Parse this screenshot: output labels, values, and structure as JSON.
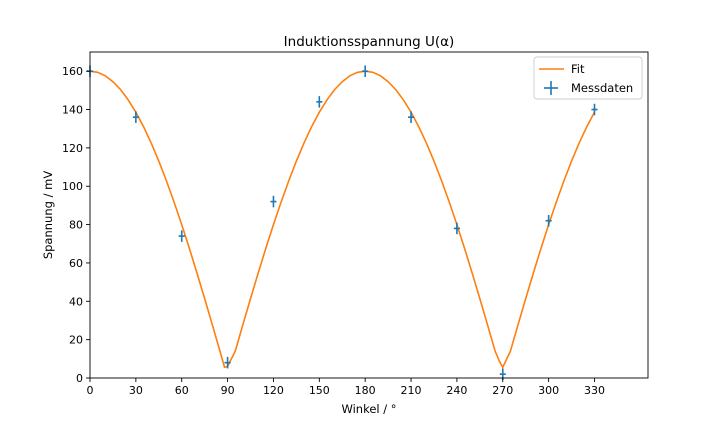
{
  "chart_data": {
    "type": "scatter",
    "title": "Induktionsspannung U(α)",
    "xlabel": "Winkel / °",
    "ylabel": "Spannung  / mV",
    "xlim": [
      0,
      365
    ],
    "ylim": [
      0,
      170
    ],
    "xticks": [
      0,
      30,
      60,
      90,
      120,
      150,
      180,
      210,
      240,
      270,
      300,
      330
    ],
    "yticks": [
      0,
      20,
      40,
      60,
      80,
      100,
      120,
      140,
      160
    ],
    "legend_position": "top-right",
    "colors": {
      "fit": "#ff7f0e",
      "data": "#1f77b4"
    },
    "series": [
      {
        "name": "Fit",
        "kind": "line",
        "x": [
          0,
          5,
          10,
          15,
          20,
          25,
          30,
          35,
          40,
          45,
          50,
          55,
          60,
          65,
          70,
          75,
          80,
          85,
          88,
          90,
          95,
          100,
          105,
          110,
          115,
          120,
          125,
          130,
          135,
          140,
          145,
          150,
          155,
          160,
          165,
          170,
          175,
          180,
          185,
          190,
          195,
          200,
          205,
          210,
          215,
          220,
          225,
          230,
          235,
          240,
          245,
          250,
          255,
          260,
          265,
          268,
          270,
          275,
          280,
          285,
          290,
          295,
          300,
          305,
          310,
          315,
          320,
          325,
          330
        ],
        "y": [
          160,
          159.4,
          157.6,
          154.5,
          150.4,
          145,
          138.6,
          131.1,
          122.6,
          113.1,
          102.8,
          91.7,
          80,
          67.6,
          54.7,
          41.4,
          27.8,
          14,
          5.6,
          6,
          14,
          27.8,
          41.4,
          54.7,
          67.6,
          80,
          91.7,
          102.8,
          113.1,
          122.6,
          131.1,
          138.6,
          145,
          150.4,
          154.5,
          157.6,
          159.4,
          160,
          159.4,
          157.6,
          154.5,
          150.4,
          145,
          138.6,
          131.1,
          122.6,
          113.1,
          102.8,
          91.7,
          80,
          67.6,
          54.7,
          41.4,
          27.8,
          14,
          8.4,
          5.6,
          14,
          27.8,
          41.4,
          54.7,
          67.6,
          80,
          91.7,
          102.8,
          113.1,
          122.6,
          131.1,
          138.6
        ]
      },
      {
        "name": "Messdaten",
        "kind": "errorbar",
        "x": [
          0,
          30,
          60,
          90,
          120,
          150,
          180,
          210,
          240,
          270,
          300,
          330
        ],
        "y": [
          160,
          136,
          74,
          8,
          92,
          144,
          160,
          136,
          78,
          2,
          82,
          140
        ],
        "xerr": 2,
        "yerr": 3
      }
    ]
  }
}
